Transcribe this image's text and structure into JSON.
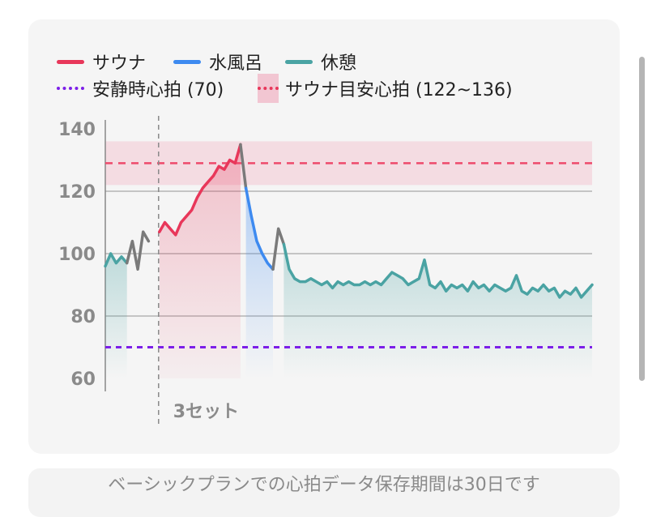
{
  "legend": {
    "sauna": {
      "label": "サウナ",
      "color": "#e8375a"
    },
    "coldbath": {
      "label": "水風呂",
      "color": "#3d8af0"
    },
    "rest": {
      "label": "休憩",
      "color": "#4aa3a3"
    },
    "resting_hr": {
      "label": "安静時心拍 (70)",
      "color": "#7c1fe8"
    },
    "target_hr": {
      "label": "サウナ目安心拍 (122~136)",
      "color": "#e8375a",
      "band_color": "#f2c6d2"
    }
  },
  "set_label": "3セット",
  "footer_note": "ベーシックプランでの心拍データ保存期間は30日です",
  "chart_data": {
    "type": "line",
    "ylim": [
      60,
      140
    ],
    "yticks": [
      140,
      120,
      100,
      80,
      60
    ],
    "grid": true,
    "x_unit_note": "",
    "resting_line": 70,
    "target_band": [
      122,
      136
    ],
    "target_line": 129,
    "set_marker_x": 10,
    "segments": [
      {
        "kind": "rest",
        "points": [
          [
            0,
            96
          ],
          [
            1,
            100
          ],
          [
            2,
            97
          ],
          [
            3,
            99
          ],
          [
            4,
            97
          ]
        ]
      },
      {
        "kind": "transition",
        "points": [
          [
            4,
            97
          ],
          [
            5,
            104
          ],
          [
            6,
            95
          ],
          [
            7,
            107
          ],
          [
            8,
            104
          ]
        ]
      },
      {
        "kind": "sauna",
        "points": [
          [
            10,
            107
          ],
          [
            11,
            110
          ],
          [
            12,
            108
          ],
          [
            13,
            106
          ],
          [
            14,
            110
          ],
          [
            15,
            112
          ],
          [
            16,
            114
          ],
          [
            17,
            118
          ],
          [
            18,
            121
          ],
          [
            19,
            123
          ],
          [
            20,
            125
          ],
          [
            21,
            128
          ],
          [
            22,
            127
          ],
          [
            23,
            130
          ],
          [
            24,
            129
          ],
          [
            25,
            135
          ]
        ]
      },
      {
        "kind": "transition",
        "points": [
          [
            25,
            135
          ],
          [
            26,
            121
          ]
        ]
      },
      {
        "kind": "coldbath",
        "points": [
          [
            26,
            121
          ],
          [
            27,
            112
          ],
          [
            28,
            104
          ],
          [
            29,
            100
          ],
          [
            30,
            97
          ],
          [
            31,
            95
          ]
        ]
      },
      {
        "kind": "transition",
        "points": [
          [
            31,
            95
          ],
          [
            32,
            108
          ],
          [
            33,
            103
          ]
        ]
      },
      {
        "kind": "rest",
        "points": [
          [
            33,
            103
          ],
          [
            34,
            95
          ],
          [
            35,
            92
          ],
          [
            36,
            91
          ],
          [
            37,
            91
          ],
          [
            38,
            92
          ],
          [
            39,
            91
          ],
          [
            40,
            90
          ],
          [
            41,
            91
          ],
          [
            42,
            89
          ],
          [
            43,
            91
          ],
          [
            44,
            90
          ],
          [
            45,
            91
          ],
          [
            46,
            90
          ],
          [
            47,
            90
          ],
          [
            48,
            91
          ],
          [
            49,
            90
          ],
          [
            50,
            91
          ],
          [
            51,
            90
          ],
          [
            52,
            92
          ],
          [
            53,
            94
          ],
          [
            54,
            93
          ],
          [
            55,
            92
          ],
          [
            56,
            90
          ],
          [
            57,
            91
          ],
          [
            58,
            92
          ],
          [
            59,
            98
          ],
          [
            60,
            90
          ],
          [
            61,
            89
          ],
          [
            62,
            91
          ],
          [
            63,
            88
          ],
          [
            64,
            90
          ],
          [
            65,
            89
          ],
          [
            66,
            90
          ],
          [
            67,
            88
          ],
          [
            68,
            91
          ],
          [
            69,
            89
          ],
          [
            70,
            90
          ],
          [
            71,
            88
          ],
          [
            72,
            90
          ],
          [
            73,
            89
          ],
          [
            74,
            88
          ],
          [
            75,
            89
          ],
          [
            76,
            93
          ],
          [
            77,
            88
          ],
          [
            78,
            87
          ],
          [
            79,
            89
          ],
          [
            80,
            88
          ],
          [
            81,
            90
          ],
          [
            82,
            88
          ],
          [
            83,
            89
          ],
          [
            84,
            86
          ],
          [
            85,
            88
          ],
          [
            86,
            87
          ],
          [
            87,
            89
          ],
          [
            88,
            86
          ],
          [
            89,
            88
          ],
          [
            90,
            90
          ]
        ]
      }
    ]
  }
}
